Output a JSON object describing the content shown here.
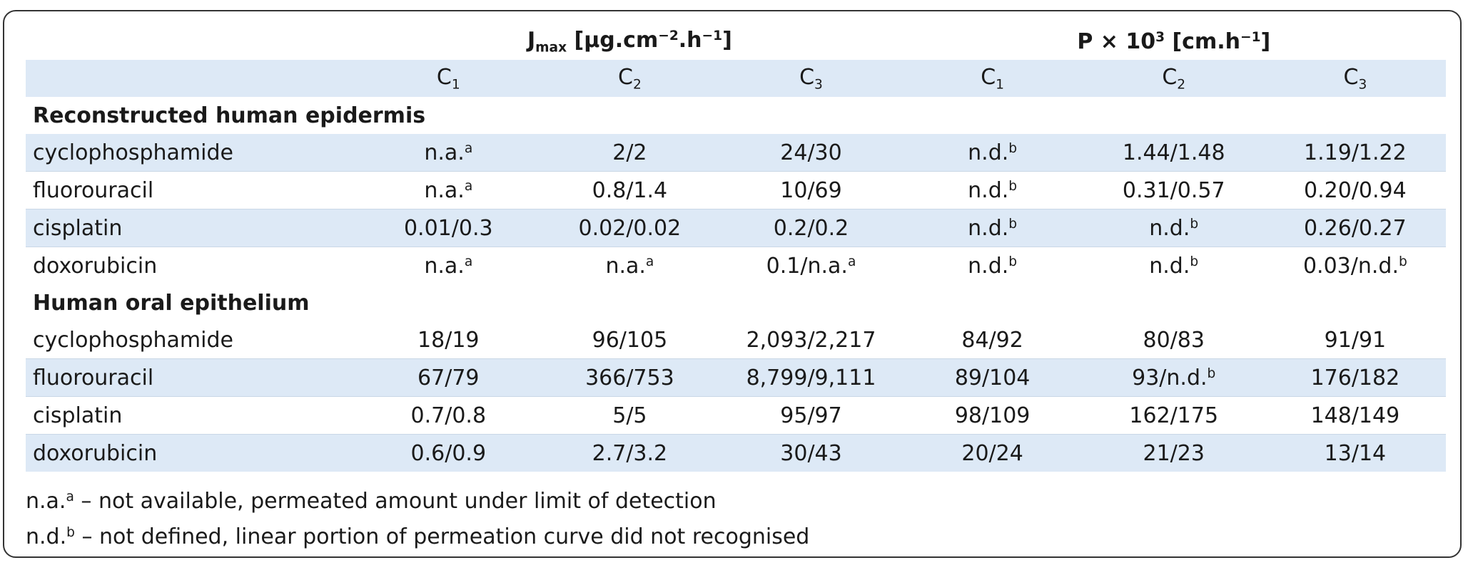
{
  "header": {
    "jmax_base": "J",
    "jmax_sub": "max",
    "jmax_unit_a": " [µg.cm",
    "jmax_unit_sup1": "−2",
    "jmax_unit_b": ".h",
    "jmax_unit_sup2": "−1",
    "jmax_unit_c": "]",
    "p_base": "P × 10",
    "p_sup": "3",
    "p_unit_a": " [cm.h",
    "p_unit_sup": "−1",
    "p_unit_c": "]"
  },
  "columns": [
    {
      "base": "C",
      "sub": "1"
    },
    {
      "base": "C",
      "sub": "2"
    },
    {
      "base": "C",
      "sub": "3"
    },
    {
      "base": "C",
      "sub": "1"
    },
    {
      "base": "C",
      "sub": "2"
    },
    {
      "base": "C",
      "sub": "3"
    }
  ],
  "sections": [
    {
      "title": "Reconstructed human epidermis",
      "rows": [
        {
          "name": "cyclophosphamide",
          "cells": [
            {
              "v": "n.a.",
              "s": "a"
            },
            {
              "v": "2/2",
              "s": ""
            },
            {
              "v": "24/30",
              "s": ""
            },
            {
              "v": "n.d.",
              "s": "b"
            },
            {
              "v": "1.44/1.48",
              "s": ""
            },
            {
              "v": "1.19/1.22",
              "s": ""
            }
          ]
        },
        {
          "name": "fluorouracil",
          "cells": [
            {
              "v": "n.a.",
              "s": "a"
            },
            {
              "v": "0.8/1.4",
              "s": ""
            },
            {
              "v": "10/69",
              "s": ""
            },
            {
              "v": "n.d.",
              "s": "b"
            },
            {
              "v": "0.31/0.57",
              "s": ""
            },
            {
              "v": "0.20/0.94",
              "s": ""
            }
          ]
        },
        {
          "name": "cisplatin",
          "cells": [
            {
              "v": "0.01/0.3",
              "s": ""
            },
            {
              "v": "0.02/0.02",
              "s": ""
            },
            {
              "v": "0.2/0.2",
              "s": ""
            },
            {
              "v": "n.d.",
              "s": "b"
            },
            {
              "v": "n.d.",
              "s": "b"
            },
            {
              "v": "0.26/0.27",
              "s": ""
            }
          ]
        },
        {
          "name": "doxorubicin",
          "cells": [
            {
              "v": "n.a.",
              "s": "a"
            },
            {
              "v": "n.a.",
              "s": "a"
            },
            {
              "v": "0.1/n.a.",
              "s": "a"
            },
            {
              "v": "n.d.",
              "s": "b"
            },
            {
              "v": "n.d.",
              "s": "b"
            },
            {
              "v": "0.03/n.d.",
              "s": "b"
            }
          ]
        }
      ]
    },
    {
      "title": "Human oral epithelium",
      "rows": [
        {
          "name": "cyclophosphamide",
          "cells": [
            {
              "v": "18/19",
              "s": ""
            },
            {
              "v": "96/105",
              "s": ""
            },
            {
              "v": "2,093/2,217",
              "s": ""
            },
            {
              "v": "84/92",
              "s": ""
            },
            {
              "v": "80/83",
              "s": ""
            },
            {
              "v": "91/91",
              "s": ""
            }
          ]
        },
        {
          "name": "fluorouracil",
          "cells": [
            {
              "v": "67/79",
              "s": ""
            },
            {
              "v": "366/753",
              "s": ""
            },
            {
              "v": "8,799/9,111",
              "s": ""
            },
            {
              "v": "89/104",
              "s": ""
            },
            {
              "v": "93/n.d.",
              "s": "b"
            },
            {
              "v": "176/182",
              "s": ""
            }
          ]
        },
        {
          "name": "cisplatin",
          "cells": [
            {
              "v": "0.7/0.8",
              "s": ""
            },
            {
              "v": "5/5",
              "s": ""
            },
            {
              "v": "95/97",
              "s": ""
            },
            {
              "v": "98/109",
              "s": ""
            },
            {
              "v": "162/175",
              "s": ""
            },
            {
              "v": "148/149",
              "s": ""
            }
          ]
        },
        {
          "name": "doxorubicin",
          "cells": [
            {
              "v": "0.6/0.9",
              "s": ""
            },
            {
              "v": "2.7/3.2",
              "s": ""
            },
            {
              "v": "30/43",
              "s": ""
            },
            {
              "v": "20/24",
              "s": ""
            },
            {
              "v": "21/23",
              "s": ""
            },
            {
              "v": "13/14",
              "s": ""
            }
          ]
        }
      ]
    }
  ],
  "footnotes": [
    {
      "mark": "n.a.",
      "sup": "a",
      "text": " – not available, permeated amount under limit of detection"
    },
    {
      "mark": "n.d.",
      "sup": "b",
      "text": " – not defined, linear portion of permeation curve did not recognised"
    }
  ],
  "colors": {
    "row_shade": "#dde9f6",
    "border": "#333333"
  }
}
